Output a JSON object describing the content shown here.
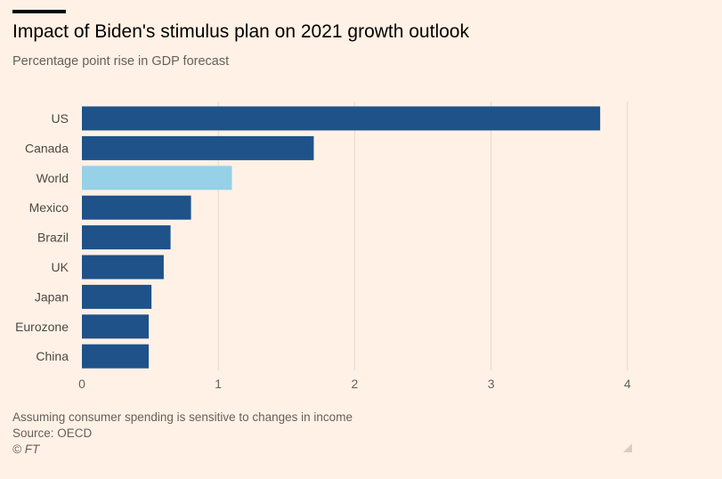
{
  "header": {
    "title": "Impact of Biden's stimulus plan on 2021 growth outlook",
    "subtitle": "Percentage point rise in GDP forecast"
  },
  "footer": {
    "note": "Assuming consumer spending is sensitive to changes in income",
    "source": "Source: OECD",
    "credit": "© FT"
  },
  "colors": {
    "background": "#fff1e5",
    "bar": "#1f5289",
    "highlight": "#96d1e8",
    "grid": "#e6d9ce",
    "axis": "#66605c"
  },
  "chart_data": {
    "type": "bar",
    "orientation": "horizontal",
    "title": "Impact of Biden's stimulus plan on 2021 growth outlook",
    "subtitle": "Percentage point rise in GDP forecast",
    "xlabel": "",
    "ylabel": "",
    "xlim": [
      0,
      4
    ],
    "xticks": [
      0,
      1,
      2,
      3,
      4
    ],
    "grid": true,
    "categories": [
      "US",
      "Canada",
      "World",
      "Mexico",
      "Brazil",
      "UK",
      "Japan",
      "Eurozone",
      "China"
    ],
    "values": [
      3.8,
      1.7,
      1.1,
      0.8,
      0.65,
      0.6,
      0.51,
      0.49,
      0.49
    ],
    "highlight": [
      "World"
    ]
  }
}
